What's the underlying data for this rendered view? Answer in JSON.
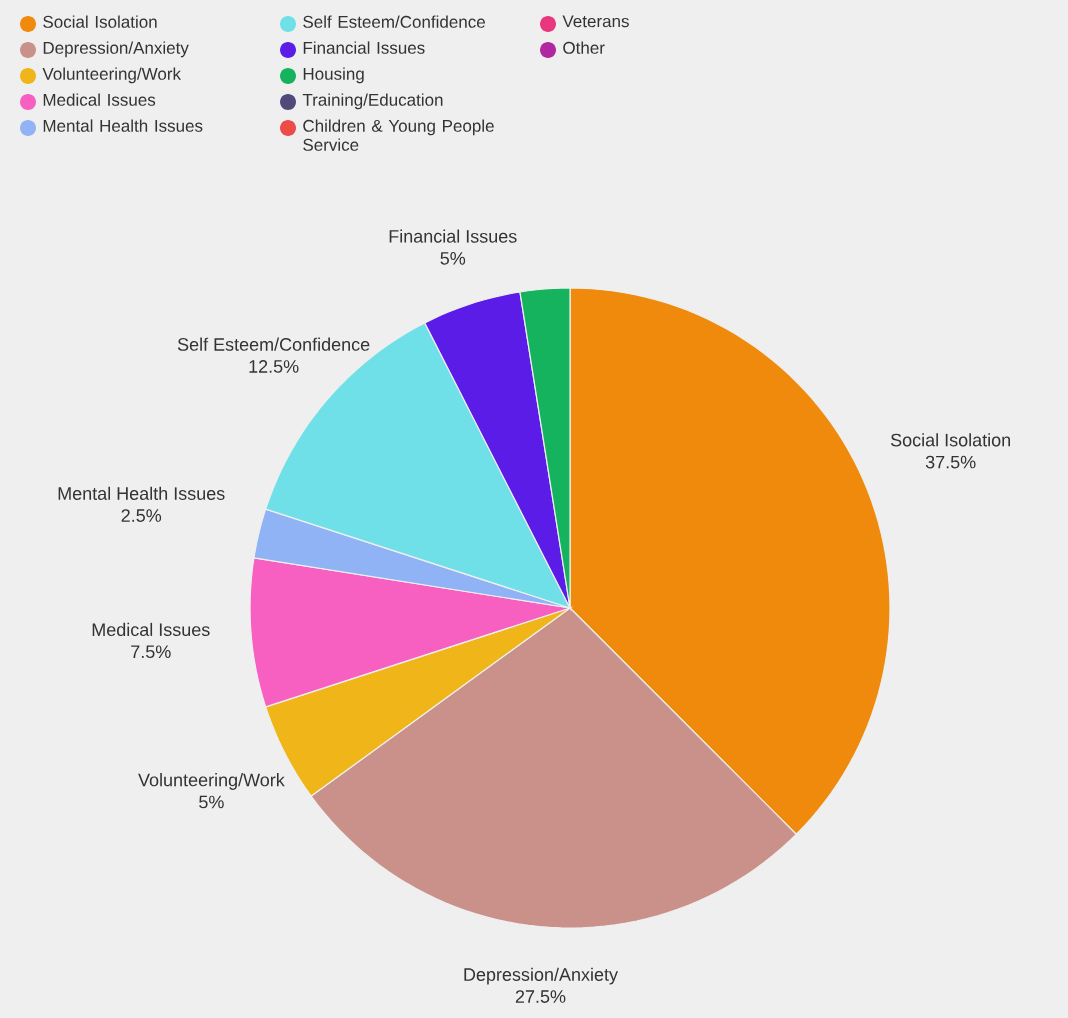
{
  "chart_data": {
    "type": "pie",
    "categories": [
      "Social Isolation",
      "Depression/Anxiety",
      "Volunteering/Work",
      "Medical Issues",
      "Mental Health Issues",
      "Self Esteem/Confidence",
      "Financial Issues",
      "Housing",
      "Training/Education",
      "Children & Young People Service",
      "Veterans",
      "Other"
    ],
    "values": [
      37.5,
      27.5,
      5,
      7.5,
      2.5,
      12.5,
      5,
      2.5,
      0,
      0,
      0,
      0
    ],
    "colors": [
      "#ef8a0c",
      "#c9918a",
      "#f0b518",
      "#f75fc0",
      "#8fb3f5",
      "#6fe0e8",
      "#5b1ce8",
      "#16b35e",
      "#4f4a7a",
      "#ef4a4a",
      "#e8377c",
      "#b0279f"
    ],
    "value_labels": [
      "37.5%",
      "27.5%",
      "5%",
      "7.5%",
      "2.5%",
      "12.5%",
      "5%",
      null,
      null,
      null,
      null,
      null
    ],
    "legend": "top left"
  }
}
